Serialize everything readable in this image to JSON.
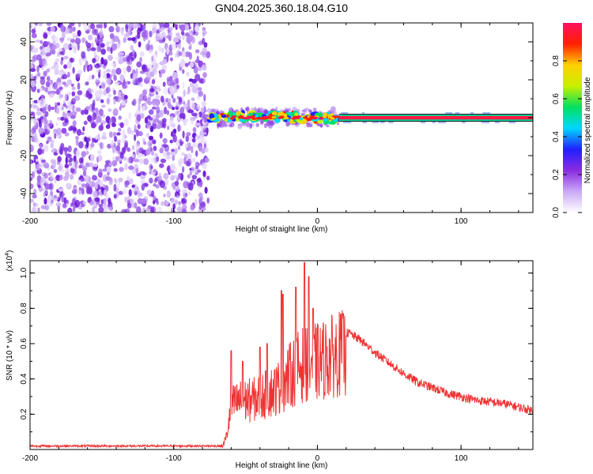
{
  "title": "GN04.2025.360.18.04.G10",
  "chart_data": [
    {
      "type": "heatmap",
      "title": "GN04.2025.360.18.04.G10",
      "xlabel": "Height of straight line (km)",
      "ylabel": "Frequency (Hz)",
      "xlim": [
        -200,
        150
      ],
      "ylim": [
        -50,
        50
      ],
      "xticks": [
        -200,
        -100,
        0,
        100
      ],
      "xtick_labels": [
        "-200",
        "-100",
        "0",
        "100"
      ],
      "yticks": [
        -40,
        -20,
        0,
        20,
        40
      ],
      "ytick_labels": [
        "-40",
        "-20",
        "0",
        "20",
        "40"
      ],
      "colorbar": {
        "label": "Normalized spectral amplitude",
        "range": [
          0,
          1
        ],
        "ticks": [
          0,
          0.2,
          0.4,
          0.6,
          0.8
        ],
        "tick_labels": [
          "0.0",
          "0.2",
          "0.4",
          "0.6",
          "0.8"
        ],
        "colormap": [
          "#ffffff",
          "#c9a8f5",
          "#8a2be2",
          "#2020ff",
          "#00d8ff",
          "#00e060",
          "#c8f000",
          "#ffd000",
          "#ff2000",
          "#ff1060"
        ]
      },
      "regions": [
        {
          "name": "noise",
          "x_range": [
            -200,
            -76
          ],
          "y_range": [
            -50,
            50
          ],
          "amplitude": 0.12
        },
        {
          "name": "transition",
          "x_range": [
            -78,
            15
          ],
          "center_freq": 0,
          "width_hz": 6,
          "amplitude": 0.6
        },
        {
          "name": "steady-line",
          "x_range": [
            15,
            150
          ],
          "freq": 0,
          "amplitude": 0.95
        }
      ]
    },
    {
      "type": "line",
      "xlabel": "Height of straight line (km)",
      "ylabel": "SNR (10 * v/v)",
      "multiplier_label": "(x10",
      "multiplier_exp": "4",
      "multiplier_close": ")",
      "xlim": [
        -200,
        150
      ],
      "ylim": [
        0,
        1.07
      ],
      "xticks": [
        -200,
        -100,
        0,
        100
      ],
      "xtick_labels": [
        "-200",
        "-100",
        "0",
        "100"
      ],
      "yticks": [
        0.2,
        0.4,
        0.6,
        0.8,
        1.0
      ],
      "ytick_labels": [
        "0.2",
        "0.4",
        "0.6",
        "0.8",
        "1.0"
      ],
      "color": "#ee3333",
      "series": [
        {
          "name": "SNR",
          "envelope": [
            [
              -200,
              0.02
            ],
            [
              -66,
              0.02
            ],
            [
              -63,
              0.1
            ],
            [
              -60,
              0.3
            ],
            [
              -55,
              0.33
            ],
            [
              -45,
              0.34
            ],
            [
              -35,
              0.38
            ],
            [
              -28,
              0.42
            ],
            [
              -22,
              0.48
            ],
            [
              -15,
              0.55
            ],
            [
              -8,
              0.6
            ],
            [
              0,
              0.6
            ],
            [
              8,
              0.63
            ],
            [
              15,
              0.66
            ],
            [
              22,
              0.66
            ],
            [
              30,
              0.62
            ],
            [
              40,
              0.55
            ],
            [
              50,
              0.49
            ],
            [
              60,
              0.43
            ],
            [
              70,
              0.38
            ],
            [
              80,
              0.35
            ],
            [
              90,
              0.32
            ],
            [
              100,
              0.3
            ],
            [
              110,
              0.28
            ],
            [
              120,
              0.27
            ],
            [
              130,
              0.26
            ],
            [
              140,
              0.24
            ],
            [
              150,
              0.22
            ]
          ],
          "peaks": [
            [
              -60,
              0.56
            ],
            [
              -52,
              0.5
            ],
            [
              -40,
              0.58
            ],
            [
              -35,
              0.6
            ],
            [
              -25,
              0.9
            ],
            [
              -24,
              0.88
            ],
            [
              -15,
              0.92
            ],
            [
              -9,
              1.06
            ],
            [
              -6,
              0.98
            ],
            [
              -3,
              0.8
            ],
            [
              18,
              0.77
            ]
          ]
        }
      ]
    }
  ]
}
